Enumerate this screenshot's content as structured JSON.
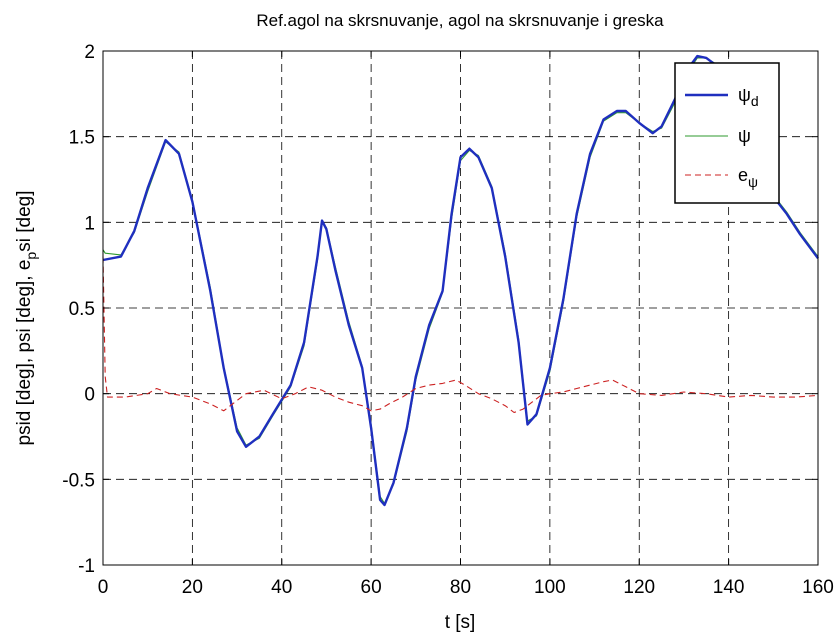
{
  "chart_data": {
    "type": "line",
    "title": "Ref.agol na skrsnuvanje, agol na skrsnuvanje i greska",
    "xlabel": "t [s]",
    "ylabel": "psid [deg], psi [deg], e_psi [deg]",
    "ylabel_parts": [
      "psid [deg], psi [deg], e",
      "p",
      "si [deg]"
    ],
    "xlim": [
      0,
      160
    ],
    "ylim": [
      -1,
      2
    ],
    "x_ticks": [
      0,
      20,
      40,
      60,
      80,
      100,
      120,
      140,
      160
    ],
    "x_tick_labels": [
      "0",
      "20",
      "40",
      "60",
      "80",
      "100",
      "120",
      "140",
      "160"
    ],
    "y_ticks": [
      -1,
      -0.5,
      0,
      0.5,
      1,
      1.5,
      2
    ],
    "y_tick_labels": [
      "-1",
      "-0.5",
      "0",
      "0.5",
      "1",
      "1.5",
      "2"
    ],
    "grid": true,
    "legend_position": "top-right",
    "series": [
      {
        "name": "ψ_d",
        "legend_main": "ψ",
        "legend_sub": "d",
        "color": "#1f2fbf",
        "style": "solid",
        "x": [
          0,
          4,
          7,
          10,
          14,
          17,
          20,
          24,
          27,
          30,
          32,
          35,
          38,
          42,
          45,
          48,
          49,
          50,
          52,
          55,
          58,
          60,
          62,
          63,
          65,
          68,
          70,
          73,
          76,
          78,
          80,
          82,
          84,
          87,
          90,
          93,
          95,
          97,
          100,
          103,
          106,
          109,
          112,
          115,
          117,
          120,
          123,
          125,
          128,
          131,
          133,
          135,
          138,
          141,
          144,
          147,
          150,
          153,
          156,
          160
        ],
        "y": [
          0.78,
          0.8,
          0.95,
          1.2,
          1.48,
          1.4,
          1.12,
          0.6,
          0.15,
          -0.22,
          -0.31,
          -0.25,
          -0.12,
          0.05,
          0.3,
          0.8,
          1.01,
          0.96,
          0.72,
          0.4,
          0.15,
          -0.2,
          -0.62,
          -0.65,
          -0.52,
          -0.2,
          0.1,
          0.4,
          0.6,
          1.05,
          1.38,
          1.43,
          1.38,
          1.2,
          0.8,
          0.3,
          -0.18,
          -0.12,
          0.15,
          0.55,
          1.05,
          1.4,
          1.6,
          1.65,
          1.65,
          1.58,
          1.52,
          1.56,
          1.72,
          1.9,
          1.97,
          1.96,
          1.9,
          1.7,
          1.45,
          1.28,
          1.15,
          1.05,
          0.93,
          0.79
        ]
      },
      {
        "name": "ψ",
        "legend_main": "ψ",
        "legend_sub": "",
        "color": "#2e9a2e",
        "style": "solid",
        "x": [
          0,
          0.5,
          4,
          7,
          10,
          14,
          17,
          20,
          24,
          27,
          30,
          32,
          35,
          38,
          42,
          45,
          48,
          49,
          50,
          52,
          55,
          58,
          60,
          62,
          63,
          65,
          68,
          70,
          73,
          76,
          78,
          80,
          82,
          84,
          87,
          90,
          93,
          95,
          97,
          100,
          103,
          106,
          109,
          112,
          115,
          117,
          120,
          123,
          125,
          128,
          131,
          133,
          135,
          138,
          141,
          144,
          147,
          150,
          153,
          156,
          160
        ],
        "y": [
          0.84,
          0.82,
          0.81,
          0.94,
          1.18,
          1.47,
          1.41,
          1.13,
          0.62,
          0.16,
          -0.2,
          -0.3,
          -0.26,
          -0.13,
          0.04,
          0.28,
          0.78,
          1.0,
          0.97,
          0.74,
          0.42,
          0.16,
          -0.18,
          -0.6,
          -0.64,
          -0.53,
          -0.22,
          0.08,
          0.38,
          0.59,
          1.02,
          1.36,
          1.42,
          1.39,
          1.21,
          0.82,
          0.32,
          -0.16,
          -0.13,
          0.13,
          0.53,
          1.03,
          1.38,
          1.59,
          1.64,
          1.64,
          1.58,
          1.53,
          1.55,
          1.7,
          1.88,
          1.96,
          1.96,
          1.91,
          1.72,
          1.47,
          1.29,
          1.16,
          1.06,
          0.94,
          0.8
        ]
      },
      {
        "name": "e_ψ",
        "legend_main": "e",
        "legend_sub": "ψ",
        "color": "#cc2222",
        "style": "dashed",
        "x": [
          0,
          0.5,
          1,
          5,
          10,
          12,
          15,
          20,
          24,
          27,
          29,
          32,
          36,
          40,
          43,
          46,
          49,
          52,
          55,
          58,
          60,
          62,
          64,
          67,
          70,
          73,
          76,
          79,
          81,
          84,
          87,
          90,
          92,
          94,
          96,
          98,
          100,
          103,
          106,
          109,
          112,
          114,
          117,
          120,
          125,
          130,
          135,
          140,
          145,
          150,
          155,
          160
        ],
        "y": [
          0.8,
          0.1,
          -0.02,
          -0.02,
          0.0,
          0.03,
          0.0,
          -0.02,
          -0.06,
          -0.1,
          -0.06,
          0.0,
          0.02,
          -0.03,
          0.0,
          0.04,
          0.02,
          -0.02,
          -0.05,
          -0.07,
          -0.1,
          -0.09,
          -0.06,
          -0.02,
          0.03,
          0.05,
          0.06,
          0.08,
          0.05,
          0.0,
          -0.03,
          -0.07,
          -0.11,
          -0.09,
          -0.05,
          -0.01,
          0.0,
          0.01,
          0.03,
          0.05,
          0.07,
          0.08,
          0.04,
          0.0,
          -0.01,
          0.01,
          0.0,
          -0.02,
          -0.01,
          -0.02,
          -0.02,
          -0.01
        ]
      }
    ]
  }
}
